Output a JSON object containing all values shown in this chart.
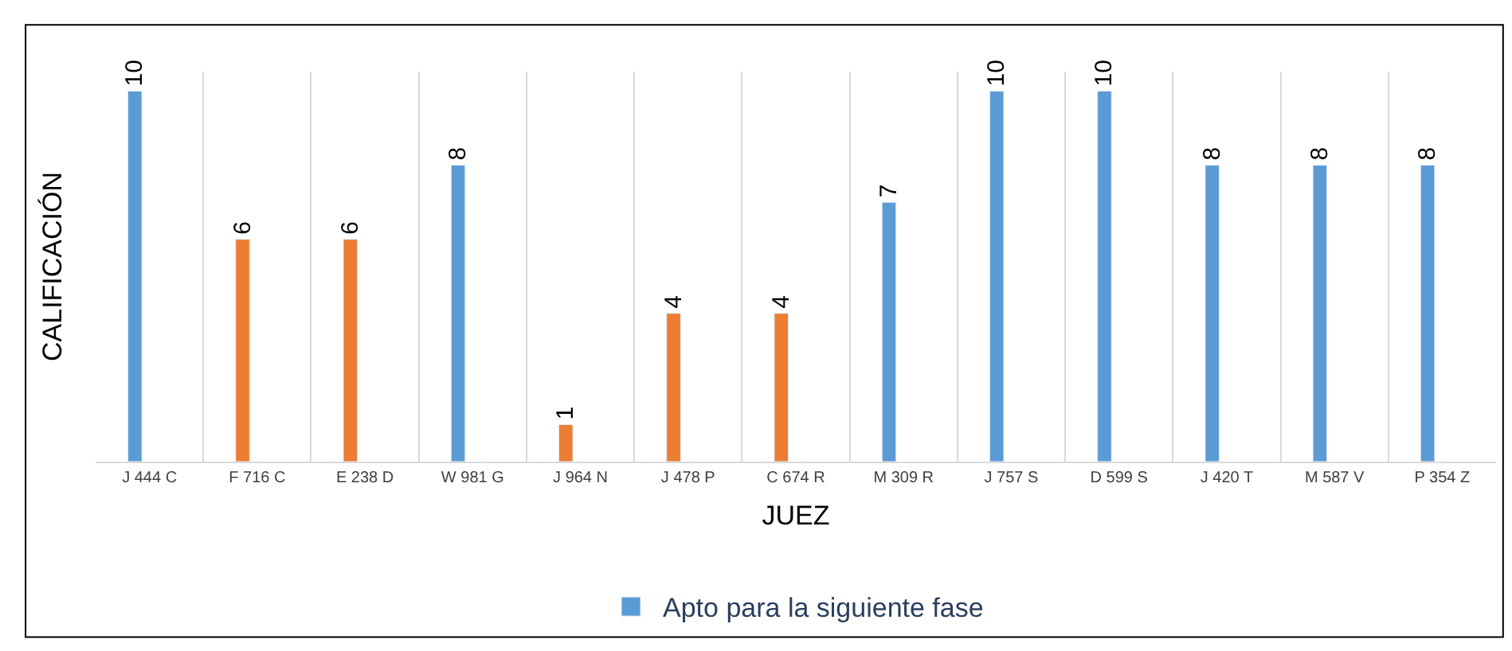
{
  "chart_data": {
    "type": "bar",
    "xlabel": "JUEZ",
    "ylabel": "CALIFICACIÓN",
    "categories": [
      "J 444 C",
      "F 716 C",
      "E 238 D",
      "W 981 G",
      "J 964 N",
      "J 478 P",
      "C 674 R",
      "M 309 R",
      "J 757 S",
      "D 599 S",
      "J 420 T",
      "M 587 V",
      "P 354 Z"
    ],
    "series": [
      {
        "name": "Apto para la siguiente fase",
        "color": "#5b9bd5",
        "values": [
          10,
          null,
          null,
          8,
          null,
          null,
          null,
          7,
          10,
          10,
          8,
          8,
          8
        ]
      },
      {
        "color": "#ed7d31",
        "values": [
          null,
          6,
          6,
          null,
          1,
          4,
          4,
          null,
          null,
          null,
          null,
          null,
          null
        ]
      }
    ],
    "data_labels": true,
    "grid": "x",
    "legend": "bottom",
    "tick_labels": "x"
  }
}
